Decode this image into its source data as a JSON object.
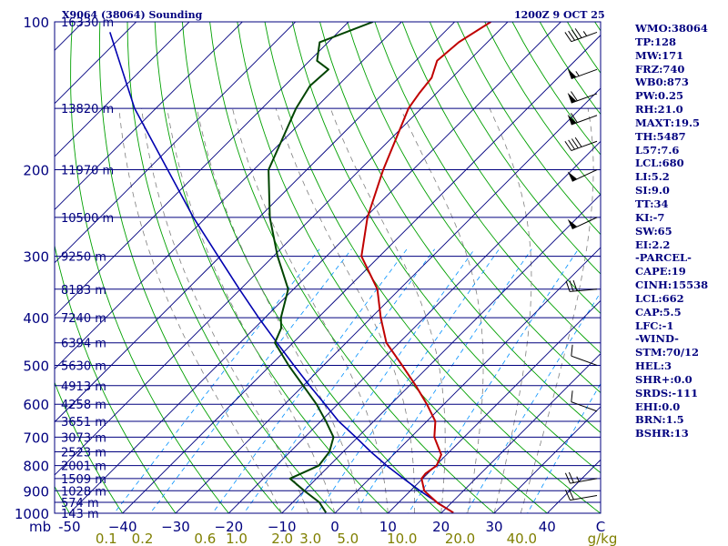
{
  "header": {
    "station": "X9064 (38064) Sounding",
    "valid": "1200Z  9 OCT 25"
  },
  "indices": [
    "WMO:38064",
    "TP:128",
    "MW:171",
    "FRZ:740",
    "WB0:873",
    "PW:0.25",
    "RH:21.0",
    "MAXT:19.5",
    "TH:5487",
    "L57:7.6",
    "LCL:680",
    "LI:5.2",
    "SI:9.0",
    "TT:34",
    "KI:-7",
    "SW:65",
    "EI:2.2",
    "-PARCEL-",
    "CAPE:19",
    "CINH:15538",
    "LCL:662",
    "CAP:5.5",
    "LFC:-1",
    "-WIND-",
    "STM:70/12",
    "HEL:3",
    "SHR+:0.0",
    "SRDS:-111",
    "EHI:0.0",
    "BRN:1.5",
    "BSHR:13"
  ],
  "colors": {
    "frame": "#00007f",
    "isobar": "#00007f",
    "isotherm": "#00007f",
    "dry_adiabat": "#00a000",
    "moist_adiabat": "#7f7f7f",
    "mixing_ratio": "#0090ff",
    "temperature": "#c00000",
    "dewpoint": "#004400",
    "parcel": "#0000b0",
    "mixing_label": "#7f7f00"
  },
  "chart_data": {
    "type": "skew-t log-p",
    "pressure_unit_label": "mb",
    "mixing_ratio_unit_label": "g/kg",
    "pressure_levels": [
      {
        "p": 100,
        "label": "100",
        "height": "16330 m"
      },
      {
        "p": 150,
        "label": "",
        "height": "13820 m"
      },
      {
        "p": 200,
        "label": "200",
        "height": "11970 m"
      },
      {
        "p": 250,
        "label": "",
        "height": "10500 m"
      },
      {
        "p": 300,
        "label": "300",
        "height": "9250 m"
      },
      {
        "p": 350,
        "label": "",
        "height": "8183 m"
      },
      {
        "p": 400,
        "label": "400",
        "height": "7240 m"
      },
      {
        "p": 450,
        "label": "",
        "height": "6394 m"
      },
      {
        "p": 500,
        "label": "500",
        "height": "5630 m"
      },
      {
        "p": 550,
        "label": "",
        "height": "4913 m"
      },
      {
        "p": 600,
        "label": "600",
        "height": "4258 m"
      },
      {
        "p": 650,
        "label": "",
        "height": "3651 m"
      },
      {
        "p": 700,
        "label": "700",
        "height": "3073 m"
      },
      {
        "p": 750,
        "label": "",
        "height": "2523 m"
      },
      {
        "p": 800,
        "label": "800",
        "height": "2001 m"
      },
      {
        "p": 850,
        "label": "",
        "height": "1509 m"
      },
      {
        "p": 900,
        "label": "900",
        "height": "1028 m"
      },
      {
        "p": 950,
        "label": "",
        "height": "574 m"
      },
      {
        "p": 1000,
        "label": "1000",
        "height": "143 m"
      }
    ],
    "temperature_ticks": [
      -50,
      -40,
      -30,
      -20,
      -10,
      0,
      10,
      20,
      30,
      40
    ],
    "temperature_tick_labels": [
      "-50",
      "−40",
      "−30",
      "−20",
      "−10",
      "0",
      "10",
      "20",
      "30",
      "40"
    ],
    "last_temperature_tick_label": "C",
    "mixing_ratio_labels": [
      "0.1",
      "0.2",
      "0.6",
      "1.0",
      "2.0",
      "3.0",
      "5.0",
      "10.0",
      "20.0",
      "40.0"
    ],
    "temperature_profile": [
      {
        "p": 997,
        "t": 22.2
      },
      {
        "p": 955,
        "t": 17.6
      },
      {
        "p": 935,
        "t": 15.8
      },
      {
        "p": 900,
        "t": 12.6
      },
      {
        "p": 850,
        "t": 9.8
      },
      {
        "p": 830,
        "t": 9.6
      },
      {
        "p": 800,
        "t": 10.2
      },
      {
        "p": 760,
        "t": 9.0
      },
      {
        "p": 700,
        "t": 4.4
      },
      {
        "p": 650,
        "t": 1.6
      },
      {
        "p": 600,
        "t": -3.2
      },
      {
        "p": 550,
        "t": -8.8
      },
      {
        "p": 500,
        "t": -15.2
      },
      {
        "p": 450,
        "t": -22.4
      },
      {
        "p": 420,
        "t": -25.8
      },
      {
        "p": 400,
        "t": -28.2
      },
      {
        "p": 350,
        "t": -34.2
      },
      {
        "p": 300,
        "t": -43.4
      },
      {
        "p": 250,
        "t": -49.6
      },
      {
        "p": 200,
        "t": -55.6
      },
      {
        "p": 150,
        "t": -62.4
      },
      {
        "p": 140,
        "t": -63.2
      },
      {
        "p": 130,
        "t": -63.8
      },
      {
        "p": 120,
        "t": -66.0
      },
      {
        "p": 110,
        "t": -65.4
      },
      {
        "p": 100,
        "t": -63.2
      }
    ],
    "dewpoint_profile": [
      {
        "p": 997,
        "t": -1.8
      },
      {
        "p": 950,
        "t": -5.0
      },
      {
        "p": 900,
        "t": -10.0
      },
      {
        "p": 850,
        "t": -15.0
      },
      {
        "p": 800,
        "t": -12.0
      },
      {
        "p": 750,
        "t": -12.6
      },
      {
        "p": 700,
        "t": -14.6
      },
      {
        "p": 650,
        "t": -19.0
      },
      {
        "p": 600,
        "t": -24.0
      },
      {
        "p": 550,
        "t": -30.0
      },
      {
        "p": 500,
        "t": -36.6
      },
      {
        "p": 450,
        "t": -43.4
      },
      {
        "p": 420,
        "t": -45.0
      },
      {
        "p": 400,
        "t": -47.0
      },
      {
        "p": 350,
        "t": -51.0
      },
      {
        "p": 300,
        "t": -59.2
      },
      {
        "p": 250,
        "t": -68.0
      },
      {
        "p": 200,
        "t": -77.2
      },
      {
        "p": 150,
        "t": -83.6
      },
      {
        "p": 135,
        "t": -85.2
      },
      {
        "p": 125,
        "t": -84.8
      },
      {
        "p": 120,
        "t": -88.6
      },
      {
        "p": 110,
        "t": -91.6
      },
      {
        "p": 100,
        "t": -85.4
      }
    ],
    "parcel_profile": [
      {
        "p": 997,
        "t": 22.2
      },
      {
        "p": 950,
        "t": 17.2
      },
      {
        "p": 900,
        "t": 11.8
      },
      {
        "p": 850,
        "t": 6.4
      },
      {
        "p": 800,
        "t": 0.8
      },
      {
        "p": 750,
        "t": -4.8
      },
      {
        "p": 700,
        "t": -10.4
      },
      {
        "p": 650,
        "t": -16.6
      },
      {
        "p": 600,
        "t": -22.4
      },
      {
        "p": 550,
        "t": -28.8
      },
      {
        "p": 500,
        "t": -35.6
      },
      {
        "p": 450,
        "t": -43.0
      },
      {
        "p": 400,
        "t": -51.2
      },
      {
        "p": 350,
        "t": -60.2
      },
      {
        "p": 300,
        "t": -70.4
      },
      {
        "p": 250,
        "t": -82.4
      },
      {
        "p": 200,
        "t": -96.2
      },
      {
        "p": 150,
        "t": -114.0
      },
      {
        "p": 105,
        "t": -133.0
      }
    ],
    "dry_adiabats_theta_c": [
      -70,
      -60,
      -50,
      -40,
      -30,
      -20,
      -10,
      0,
      10,
      20,
      30,
      40,
      50,
      60,
      70,
      80,
      90,
      100,
      110,
      120,
      130,
      140,
      150,
      160,
      170,
      180,
      190,
      200
    ],
    "moist_adiabats_thetaw_c": [
      -10,
      -5,
      0,
      5,
      10,
      15,
      20,
      25,
      30,
      35
    ],
    "mixing_ratio_lines_gkg": [
      0.1,
      0.2,
      0.6,
      1.0,
      2.0,
      3.0,
      5.0,
      10.0,
      20.0,
      40.0
    ],
    "wind_barbs": [
      {
        "p": 105,
        "dir": 250,
        "speed_kt": 45
      },
      {
        "p": 125,
        "dir": 250,
        "speed_kt": 55
      },
      {
        "p": 140,
        "dir": 250,
        "speed_kt": 60
      },
      {
        "p": 155,
        "dir": 250,
        "speed_kt": 60
      },
      {
        "p": 175,
        "dir": 250,
        "speed_kt": 40
      },
      {
        "p": 200,
        "dir": 245,
        "speed_kt": 50
      },
      {
        "p": 250,
        "dir": 245,
        "speed_kt": 50
      },
      {
        "p": 350,
        "dir": 265,
        "speed_kt": 30
      },
      {
        "p": 500,
        "dir": 290,
        "speed_kt": 10
      },
      {
        "p": 620,
        "dir": 290,
        "speed_kt": 10
      },
      {
        "p": 850,
        "dir": 260,
        "speed_kt": 25
      },
      {
        "p": 920,
        "dir": 260,
        "speed_kt": 20
      }
    ]
  }
}
